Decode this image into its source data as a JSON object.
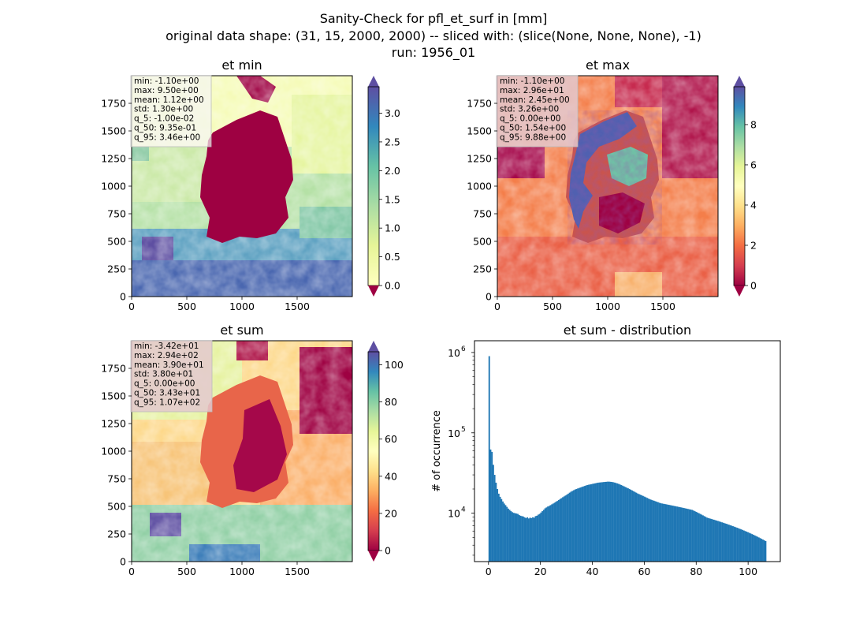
{
  "suptitle": {
    "line1": "Sanity-Check for pfl_et_surf in [mm]",
    "line2": "original data shape: (31, 15, 2000, 2000) -- sliced with: (slice(None, None, None), -1)",
    "line3": "run: 1956_01"
  },
  "colors": {
    "hist_bar": "#1f77b4",
    "stats_box": "#e3c8ce"
  },
  "colormap": "Spectral",
  "chart_data": [
    {
      "type": "heatmap",
      "title": "et min",
      "xlim": [
        0,
        2000
      ],
      "ylim": [
        0,
        2000
      ],
      "x_ticks": [
        0,
        500,
        1000,
        1500
      ],
      "y_ticks": [
        0,
        250,
        500,
        750,
        1000,
        1250,
        1500,
        1750
      ],
      "colorbar": {
        "range": [
          0,
          3.46
        ],
        "ticks": [
          "0.0",
          "0.5",
          "1.0",
          "1.5",
          "2.0",
          "2.5",
          "3.0"
        ],
        "tick_values": [
          0,
          0.5,
          1.0,
          1.5,
          2.0,
          2.5,
          3.0
        ],
        "extend": "both"
      },
      "stats": [
        "min: -1.10e+00",
        "max: 9.50e+00",
        "mean: 1.12e+00",
        "std: 1.30e+00",
        "q_5: -1.00e-02",
        "q_50: 9.35e-01",
        "q_95: 3.46e+00"
      ]
    },
    {
      "type": "heatmap",
      "title": "et max",
      "xlim": [
        0,
        2000
      ],
      "ylim": [
        0,
        2000
      ],
      "x_ticks": [
        0,
        500,
        1000,
        1500
      ],
      "y_ticks": [
        0,
        250,
        500,
        750,
        1000,
        1250,
        1500,
        1750
      ],
      "colorbar": {
        "range": [
          0,
          9.88
        ],
        "ticks": [
          "0",
          "2",
          "4",
          "6",
          "8"
        ],
        "tick_values": [
          0,
          2,
          4,
          6,
          8
        ],
        "extend": "both"
      },
      "stats": [
        "min: -1.10e+00",
        "max: 2.96e+01",
        "mean: 2.45e+00",
        "std: 3.26e+00",
        "q_5: 0.00e+00",
        "q_50: 1.54e+00",
        "q_95: 9.88e+00"
      ]
    },
    {
      "type": "heatmap",
      "title": "et sum",
      "xlim": [
        0,
        2000
      ],
      "ylim": [
        0,
        2000
      ],
      "x_ticks": [
        0,
        500,
        1000,
        1500
      ],
      "y_ticks": [
        0,
        250,
        500,
        750,
        1000,
        1250,
        1500,
        1750
      ],
      "colorbar": {
        "range": [
          0,
          107
        ],
        "ticks": [
          "0",
          "20",
          "40",
          "60",
          "80",
          "100"
        ],
        "tick_values": [
          0,
          20,
          40,
          60,
          80,
          100
        ],
        "extend": "both"
      },
      "stats": [
        "min: -3.42e+01",
        "max: 2.94e+02",
        "mean: 3.90e+01",
        "std: 3.80e+01",
        "q_5: 0.00e+00",
        "q_50: 3.43e+01",
        "q_95: 1.07e+02"
      ]
    },
    {
      "type": "bar",
      "title": "et sum - distribution",
      "ylabel": "# of occurrence",
      "yscale": "log",
      "xlim": [
        -5.4,
        112.4
      ],
      "ylim": [
        2500,
        1400000
      ],
      "x_ticks": [
        0,
        20,
        40,
        60,
        80,
        100
      ],
      "y_ticks": [
        {
          "value": 10000,
          "label_base": "10",
          "label_exp": "4"
        },
        {
          "value": 100000,
          "label_base": "10",
          "label_exp": "5"
        },
        {
          "value": 1000000,
          "label_base": "10",
          "label_exp": "6"
        }
      ],
      "bin_start": 0,
      "bin_width": 0.5333,
      "x_max": 107,
      "values": [
        900000,
        62000,
        58000,
        40000,
        30000,
        24000,
        20000,
        17500,
        16000,
        15000,
        14000,
        13200,
        12600,
        12000,
        11400,
        11000,
        10600,
        10300,
        10100,
        10000,
        9900,
        9800,
        9500,
        9300,
        9200,
        9100,
        8900,
        8700,
        8900,
        8600,
        8800,
        8700,
        8900,
        8800,
        9200,
        9300,
        9600,
        9800,
        10200,
        10600,
        11000,
        11500,
        11800,
        12100,
        12300,
        12600,
        12900,
        13200,
        13500,
        13900,
        14200,
        14600,
        15000,
        15400,
        15800,
        16200,
        16600,
        17000,
        17500,
        18000,
        18500,
        18900,
        19300,
        19700,
        20000,
        20300,
        20600,
        20900,
        21200,
        21500,
        21800,
        22100,
        22400,
        22600,
        22800,
        23000,
        23200,
        23400,
        23600,
        23800,
        24000,
        24100,
        24200,
        24300,
        24400,
        24500,
        24600,
        24700,
        24700,
        24600,
        24500,
        24300,
        24100,
        23800,
        23500,
        23200,
        22800,
        22400,
        22000,
        21600,
        21200,
        20800,
        20400,
        20000,
        19600,
        19200,
        18800,
        18400,
        18000,
        17600,
        17300,
        17000,
        16700,
        16400,
        16100,
        15800,
        15500,
        15200,
        14900,
        14700,
        14500,
        14300,
        14100,
        13900,
        13700,
        13500,
        13300,
        13200,
        13100,
        13000,
        12900,
        12800,
        12700,
        12600,
        12500,
        12400,
        12300,
        12200,
        12100,
        12000,
        11900,
        11800,
        11700,
        11600,
        11500,
        11400,
        11300,
        11200,
        11100,
        11000,
        10800,
        10600,
        10400,
        10200,
        10000,
        9800,
        9600,
        9400,
        9200,
        9000,
        8800,
        8700,
        8600,
        8500,
        8400,
        8300,
        8200,
        8100,
        8000,
        7900,
        7800,
        7700,
        7600,
        7500,
        7400,
        7300,
        7200,
        7100,
        7000,
        6900,
        6800,
        6700,
        6600,
        6500,
        6400,
        6300,
        6200,
        6100,
        6000,
        5900,
        5800,
        5700,
        5600,
        5500,
        5400,
        5300,
        5200,
        5100,
        5000,
        4900,
        4800,
        4700,
        4600,
        4500
      ]
    }
  ]
}
